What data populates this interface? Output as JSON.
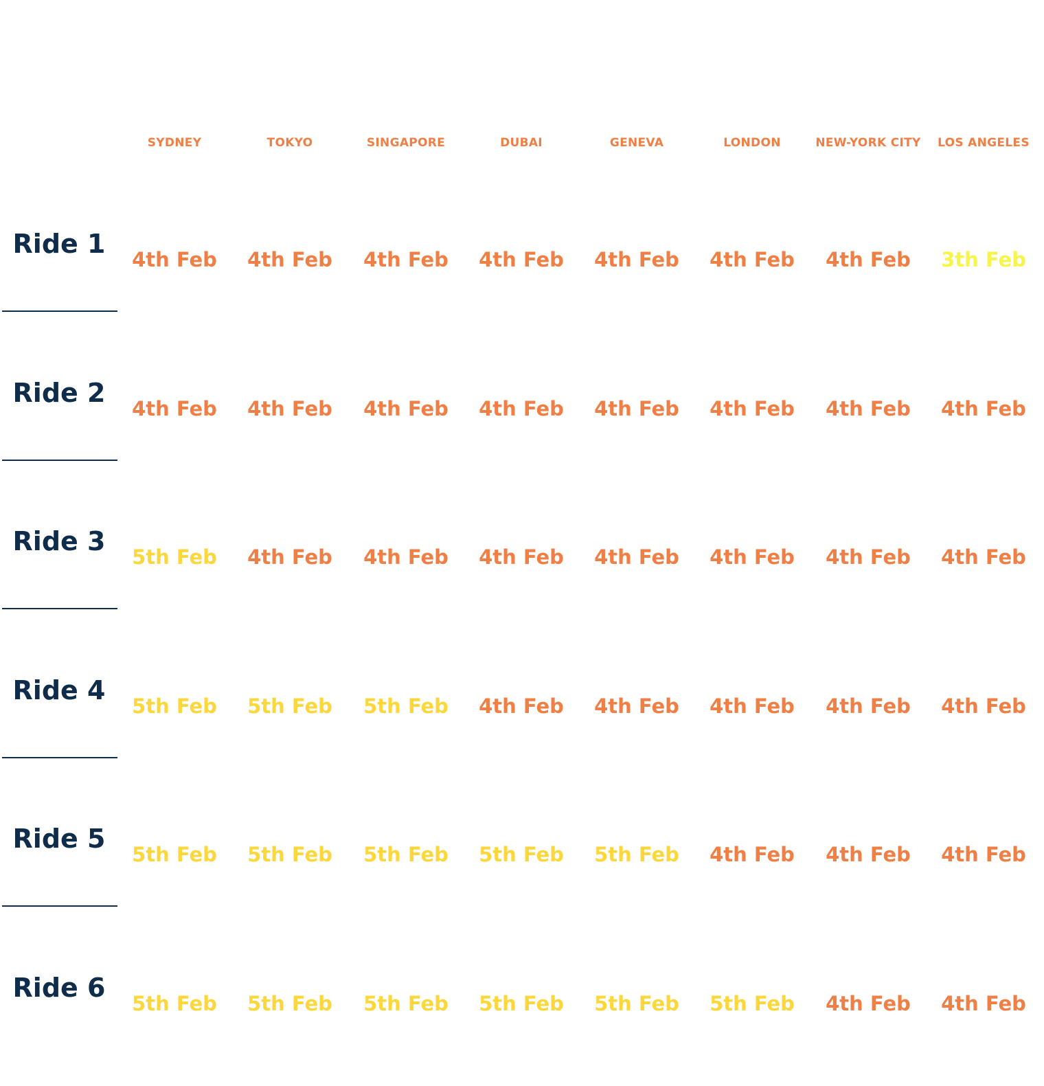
{
  "colors": {
    "ride_label": "#0f2d4a",
    "city_header": "#f07f45",
    "date_4th": "#f07f45",
    "date_5th": "#fcd73c",
    "date_3th": "#f7f54a"
  },
  "cities": [
    "SYDNEY",
    "TOKYO",
    "SINGAPORE",
    "DUBAI",
    "GENEVA",
    "LONDON",
    "NEW-YORK CITY",
    "LOS ANGELES"
  ],
  "rides": [
    {
      "label": "Ride 1",
      "dates": [
        "4th Feb",
        "4th Feb",
        "4th Feb",
        "4th Feb",
        "4th Feb",
        "4th Feb",
        "4th Feb",
        "3th Feb"
      ]
    },
    {
      "label": "Ride 2",
      "dates": [
        "4th Feb",
        "4th Feb",
        "4th Feb",
        "4th Feb",
        "4th Feb",
        "4th Feb",
        "4th Feb",
        "4th Feb"
      ]
    },
    {
      "label": "Ride 3",
      "dates": [
        "5th Feb",
        "4th Feb",
        "4th Feb",
        "4th Feb",
        "4th Feb",
        "4th Feb",
        "4th Feb",
        "4th Feb"
      ]
    },
    {
      "label": "Ride 4",
      "dates": [
        "5th Feb",
        "5th Feb",
        "5th Feb",
        "4th Feb",
        "4th Feb",
        "4th Feb",
        "4th Feb",
        "4th Feb"
      ]
    },
    {
      "label": "Ride 5",
      "dates": [
        "5th Feb",
        "5th Feb",
        "5th Feb",
        "5th Feb",
        "5th Feb",
        "4th Feb",
        "4th Feb",
        "4th Feb"
      ]
    },
    {
      "label": "Ride 6",
      "dates": [
        "5th Feb",
        "5th Feb",
        "5th Feb",
        "5th Feb",
        "5th Feb",
        "5th Feb",
        "4th Feb",
        "4th Feb"
      ]
    }
  ]
}
